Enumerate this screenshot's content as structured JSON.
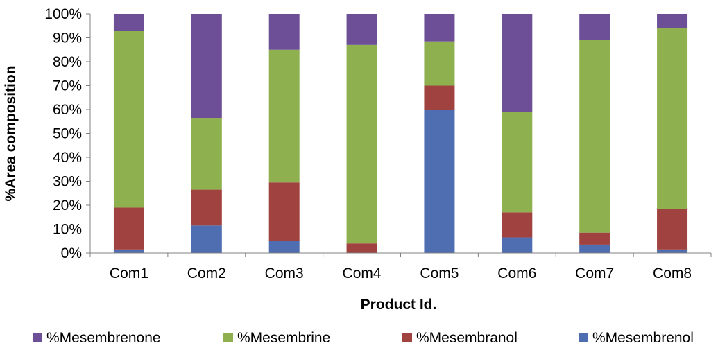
{
  "chart_data": {
    "type": "bar",
    "stacked": true,
    "categories": [
      "Com1",
      "Com2",
      "Com3",
      "Com4",
      "Com5",
      "Com6",
      "Com7",
      "Com8"
    ],
    "series": [
      {
        "name": "%Mesembrenol",
        "color": "#4f6db1",
        "values": [
          1.5,
          11.5,
          5.0,
          0.0,
          60.0,
          6.5,
          3.5,
          1.5
        ]
      },
      {
        "name": "%Mesembranol",
        "color": "#a0423f",
        "values": [
          17.5,
          15.0,
          24.5,
          4.0,
          10.0,
          10.5,
          5.0,
          17.0
        ]
      },
      {
        "name": "%Mesembrine",
        "color": "#8fb04f",
        "values": [
          74.0,
          30.0,
          55.5,
          83.0,
          18.5,
          42.0,
          80.5,
          75.5
        ]
      },
      {
        "name": "%Mesembrenone",
        "color": "#6c4f97",
        "values": [
          7.0,
          43.5,
          15.0,
          13.0,
          11.5,
          41.0,
          11.0,
          6.0
        ]
      }
    ],
    "legend_order": [
      "%Mesembrenone",
      "%Mesembrine",
      "%Mesembranol",
      "%Mesembrenol"
    ],
    "xlabel": "Product Id.",
    "ylabel": "%Area composition",
    "ylim": [
      0,
      100
    ],
    "yticks": [
      "0%",
      "10%",
      "20%",
      "30%",
      "40%",
      "50%",
      "60%",
      "70%",
      "80%",
      "90%",
      "100%"
    ],
    "grid": false,
    "legend_position": "bottom"
  }
}
